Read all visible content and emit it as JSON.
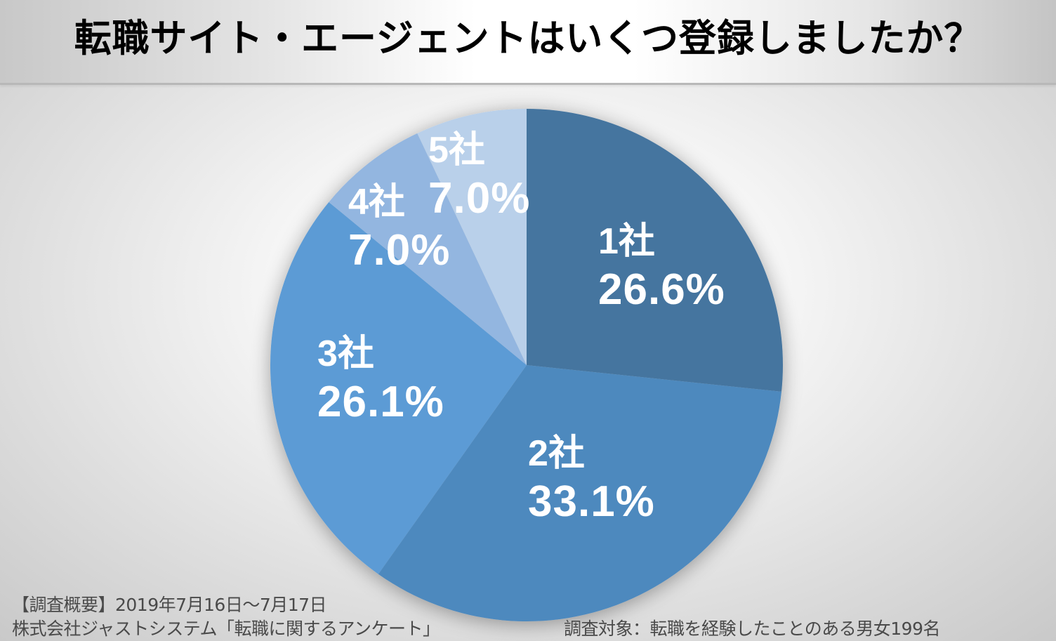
{
  "title": "転職サイト・エージェントはいくつ登録しましたか？",
  "chart_data": {
    "type": "pie",
    "title": "転職サイト・エージェントはいくつ登録しましたか？",
    "categories": [
      "1社",
      "2社",
      "3社",
      "4社",
      "5社"
    ],
    "values": [
      26.6,
      33.1,
      26.1,
      7.0,
      7.0
    ],
    "value_labels": [
      "26.6%",
      "33.1%",
      "26.1%",
      "7.0%",
      "7.0%"
    ],
    "colors": [
      "#44749F",
      "#4E89BE",
      "#5B9BD5",
      "#93B6E0",
      "#B9D0EA"
    ],
    "start_angle": "12 o'clock, clockwise",
    "unit": "%",
    "legend": "none (data labels on slices)",
    "center": [
      750,
      520
    ],
    "radius": 365
  },
  "slices": [
    {
      "category": "1社",
      "percent": "26.6%"
    },
    {
      "category": "2社",
      "percent": "33.1%"
    },
    {
      "category": "3社",
      "percent": "26.1%"
    },
    {
      "category": "4社",
      "percent": "7.0%"
    },
    {
      "category": "5社",
      "percent": "7.0%"
    }
  ],
  "footnote": {
    "survey_period": "【調査概要】2019年7月16日～7月17日",
    "source": "株式会社ジャストシステム「転職に関するアンケート」",
    "respondents": "調査対象：転職を経験したことのある男女199名"
  }
}
